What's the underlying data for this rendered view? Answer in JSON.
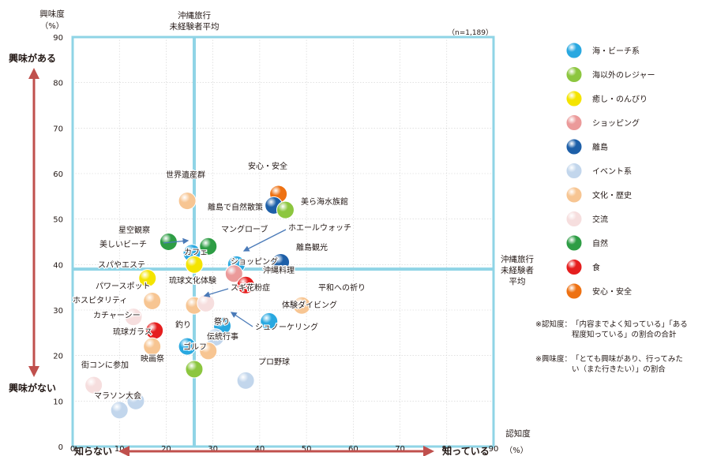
{
  "chart_data": {
    "type": "scatter",
    "x_axis": {
      "label": "認知度",
      "unit": "（%）",
      "min": 0,
      "max": 90,
      "ticks": [
        0,
        10,
        20,
        30,
        40,
        50,
        60,
        70,
        80,
        90
      ]
    },
    "y_axis": {
      "label": "興味度",
      "unit": "（%）",
      "min": 0,
      "max": 90,
      "ticks": [
        0,
        10,
        20,
        30,
        40,
        50,
        60,
        70,
        80,
        90
      ]
    },
    "sample_size": "（n=1,189）",
    "reference_lines": {
      "x_avg": 26,
      "x_avg_label": [
        "沖縄旅行",
        "未経験者平均"
      ],
      "y_avg": 39,
      "y_avg_label": [
        "沖縄旅行",
        "未経験者",
        "平均"
      ]
    },
    "direction_labels": {
      "top": "興味がある",
      "bottom": "興味がない",
      "left": "知らない",
      "right": "知っている"
    },
    "categories": [
      {
        "name": "海・ビーチ系",
        "color": "#29a8e0"
      },
      {
        "name": "海以外のレジャー",
        "color": "#8cc63f"
      },
      {
        "name": "癒し・のんびり",
        "color": "#f4e400"
      },
      {
        "name": "ショッピング",
        "color": "#eb9a9a"
      },
      {
        "name": "離島",
        "color": "#1d5fa8"
      },
      {
        "name": "イベント系",
        "color": "#c2d6ec"
      },
      {
        "name": "文化・歴史",
        "color": "#f7c592"
      },
      {
        "name": "交流",
        "color": "#f6dede"
      },
      {
        "name": "自然",
        "color": "#2e9d45"
      },
      {
        "name": "食",
        "color": "#e51e1e"
      },
      {
        "name": "安心・安全",
        "color": "#ee7112"
      }
    ],
    "points": [
      {
        "label": "安心・安全",
        "x": 44,
        "y": 55.5,
        "cat": 10
      },
      {
        "label": "世界遺産群",
        "x": 24.5,
        "y": 54,
        "cat": 6
      },
      {
        "label": "離島で自然散策",
        "x": 43,
        "y": 53,
        "cat": 4
      },
      {
        "label": "美ら海水族館",
        "x": 45.5,
        "y": 52,
        "cat": 1
      },
      {
        "label": "星空観察",
        "x": 20.5,
        "y": 45,
        "cat": 8
      },
      {
        "label": "マングローブ",
        "x": 29,
        "y": 44,
        "cat": 8
      },
      {
        "label": "美しいビーチ",
        "x": 25.5,
        "y": 42.5,
        "cat": 0
      },
      {
        "label": "ホエールウォッチ",
        "x": 35,
        "y": 40,
        "cat": 0
      },
      {
        "label": "離島観光",
        "x": 44.5,
        "y": 40.5,
        "cat": 4
      },
      {
        "label": "カフェ",
        "x": 26,
        "y": 40,
        "cat": 2
      },
      {
        "label": "ショッピング",
        "x": 34.5,
        "y": 38,
        "cat": 3
      },
      {
        "label": "スパやエステ",
        "x": 16,
        "y": 37,
        "cat": 2
      },
      {
        "label": "沖縄料理",
        "x": 37,
        "y": 35.5,
        "cat": 9
      },
      {
        "label": "パワースポット",
        "x": 17,
        "y": 32,
        "cat": 6
      },
      {
        "label": "琉球文化体験",
        "x": 26,
        "y": 31,
        "cat": 6
      },
      {
        "label": "スギ花粉症",
        "x": 28.5,
        "y": 31.5,
        "cat": 7
      },
      {
        "label": "平和への祈り",
        "x": 49,
        "y": 31,
        "cat": 6
      },
      {
        "label": "ホスピタリティ",
        "x": 13,
        "y": 28.5,
        "cat": 7
      },
      {
        "label": "体験ダイビング",
        "x": 42,
        "y": 27.5,
        "cat": 0
      },
      {
        "label": "カチャーシー",
        "x": 17.5,
        "y": 25.5,
        "cat": 9
      },
      {
        "label": "シュノーケリング",
        "x": 32,
        "y": 26.5,
        "cat": 0
      },
      {
        "label": "釣り",
        "x": 24.5,
        "y": 22,
        "cat": 0
      },
      {
        "label": "祭り",
        "x": 30.5,
        "y": 24,
        "cat": 5
      },
      {
        "label": "琉球ガラス",
        "x": 17,
        "y": 22,
        "cat": 6
      },
      {
        "label": "伝統行事",
        "x": 29,
        "y": 21,
        "cat": 6
      },
      {
        "label": "ゴルフ",
        "x": 26,
        "y": 17,
        "cat": 1
      },
      {
        "label": "プロ野球",
        "x": 37,
        "y": 14.5,
        "cat": 5
      },
      {
        "label": "街コンに参加",
        "x": 4.5,
        "y": 13.5,
        "cat": 7
      },
      {
        "label": "映画祭",
        "x": 13.5,
        "y": 10,
        "cat": 5
      },
      {
        "label": "マラソン大会",
        "x": 10,
        "y": 8,
        "cat": 5
      }
    ]
  },
  "notes": {
    "awareness_head": "※認知度：",
    "awareness_body": [
      "「内容までよく知っている」「ある",
      "程度知っている」の割合の合計"
    ],
    "interest_head": "※興味度：",
    "interest_body": [
      "「とても興味があり、行ってみた",
      "い（また行きたい）」の割合"
    ]
  }
}
